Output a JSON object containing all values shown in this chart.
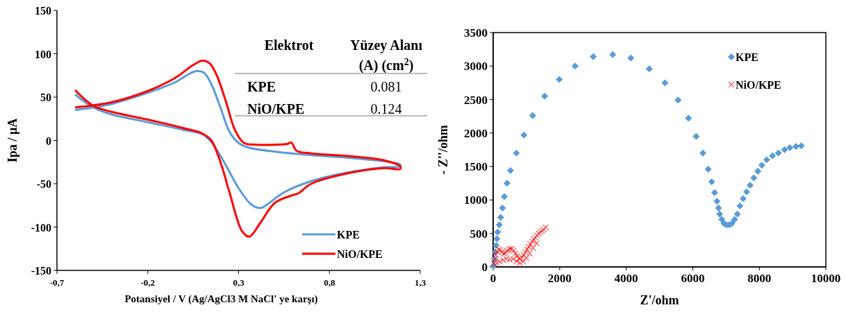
{
  "chart_data": [
    {
      "type": "line",
      "xlabel": "Potansiyel / V (Ag/AgCl3 M NaCl' ye karşı)",
      "ylabel": "Ipa  / µA",
      "xlim": [
        -0.7,
        1.3
      ],
      "xticks": [
        {
          "value": -0.7,
          "label": "-0,7"
        },
        {
          "value": -0.2,
          "label": "-0,2"
        },
        {
          "value": 0.3,
          "label": "0,3"
        },
        {
          "value": 0.8,
          "label": "0,8"
        },
        {
          "value": 1.3,
          "label": "1,3"
        }
      ],
      "ylim": [
        -150,
        150
      ],
      "yticks": [
        -150,
        -100,
        -50,
        0,
        50,
        100,
        150
      ],
      "grid": false,
      "legend": "bottom right",
      "annotations": [
        "Elektrot",
        "Yüzey Alanı",
        "(A) (cm$^{2}$)",
        "KPE",
        "0.081",
        "NiO/KPE",
        "0.124"
      ],
      "series": [
        {
          "name": "KPE",
          "color": "#5b9bd5",
          "x": [
            -0.6,
            -0.4,
            -0.2,
            -0.05,
            0.03,
            0.07,
            0.11,
            0.15,
            0.2,
            0.25,
            0.3,
            0.35,
            0.5,
            0.7,
            0.9,
            1.1,
            1.19,
            1.19,
            1.1,
            0.9,
            0.7,
            0.55,
            0.45,
            0.42,
            0.37,
            0.3,
            0.22,
            0.15,
            0.1,
            0.0,
            -0.2,
            -0.4,
            -0.5,
            -0.6
          ],
          "values": [
            35,
            42,
            55,
            67,
            77,
            80,
            78,
            65,
            38,
            10,
            -3,
            -8,
            -13,
            -17,
            -20,
            -24,
            -28,
            -30,
            -31,
            -37,
            -47,
            -60,
            -75,
            -78,
            -74,
            -55,
            -25,
            -2,
            7,
            12,
            21,
            30,
            38,
            53
          ]
        },
        {
          "name": "NiO/KPE",
          "color": "#ff0000",
          "x": [
            -0.6,
            -0.4,
            -0.2,
            -0.05,
            0.05,
            0.1,
            0.14,
            0.18,
            0.23,
            0.28,
            0.33,
            0.4,
            0.5,
            0.57,
            0.59,
            0.62,
            0.7,
            0.9,
            1.1,
            1.19,
            1.19,
            1.1,
            0.9,
            0.7,
            0.63,
            0.6,
            0.5,
            0.42,
            0.36,
            0.32,
            0.25,
            0.2,
            0.15,
            0.1,
            0.0,
            -0.2,
            -0.4,
            -0.5,
            -0.6
          ],
          "values": [
            38,
            44,
            57,
            72,
            87,
            92,
            89,
            75,
            45,
            12,
            -3,
            -5,
            -5,
            -4,
            -2.5,
            -12,
            -15,
            -18,
            -23,
            -30,
            -33,
            -32,
            -38,
            -50,
            -61,
            -63,
            -72,
            -95,
            -111,
            -105,
            -60,
            -25,
            0,
            8,
            14,
            24,
            33,
            40,
            58
          ]
        }
      ]
    },
    {
      "type": "scatter",
      "xlabel": "Z'/ohm",
      "ylabel": "- Z''/ohm",
      "xlim": [
        0,
        10000
      ],
      "xticks": [
        0,
        2000,
        4000,
        6000,
        8000,
        10000
      ],
      "ylim": [
        0,
        3500
      ],
      "yticks": [
        0,
        500,
        1000,
        1500,
        2000,
        2500,
        3000,
        3500
      ],
      "grid": false,
      "legend": "top right",
      "series": [
        {
          "name": "KPE",
          "color": "#5b9bd5",
          "marker": "diamond",
          "x": [
            16,
            40,
            64,
            88,
            112,
            136,
            184,
            225,
            281,
            337,
            417,
            521,
            698,
            922,
            1187,
            1548,
            1989,
            2462,
            3007,
            3593,
            4138,
            4692,
            5165,
            5558,
            5870,
            6103,
            6304,
            6464,
            6568,
            6656,
            6729,
            6777,
            6809,
            6873,
            6937,
            7017,
            7097,
            7178,
            7258,
            7338,
            7418,
            7515,
            7619,
            7723,
            7835,
            7956,
            8076,
            8221,
            8397,
            8573,
            8758,
            8918,
            9102,
            9262
          ],
          "values": [
            20,
            120,
            220,
            320,
            420,
            520,
            630,
            740,
            880,
            1050,
            1250,
            1440,
            1700,
            1970,
            2260,
            2550,
            2800,
            3000,
            3140,
            3170,
            3120,
            2960,
            2750,
            2490,
            2220,
            1950,
            1700,
            1460,
            1270,
            1110,
            980,
            880,
            790,
            710,
            650,
            630,
            630,
            650,
            710,
            790,
            910,
            1020,
            1120,
            1220,
            1330,
            1430,
            1520,
            1600,
            1660,
            1700,
            1750,
            1780,
            1800,
            1810
          ]
        },
        {
          "name": "NiO/KPE",
          "color": "#ff0000",
          "marker": "cross",
          "x": [
            20,
            50,
            80,
            120,
            170,
            220,
            270,
            320,
            370,
            420,
            470,
            520,
            570,
            620,
            670,
            720,
            770,
            820,
            870,
            920,
            970,
            1020,
            1070,
            1120,
            1170,
            1220,
            1270,
            1320,
            1370,
            1420,
            1470,
            1520,
            1580,
            100,
            200,
            300,
            400,
            500,
            600,
            700,
            800,
            900,
            1000,
            1100,
            1200,
            1300
          ],
          "values": [
            50,
            120,
            180,
            230,
            260,
            250,
            220,
            200,
            210,
            240,
            260,
            270,
            265,
            240,
            200,
            160,
            130,
            120,
            140,
            180,
            220,
            260,
            300,
            340,
            380,
            410,
            440,
            470,
            500,
            520,
            540,
            560,
            590,
            60,
            80,
            100,
            120,
            110,
            120,
            80,
            60,
            80,
            130,
            200,
            280,
            350
          ]
        }
      ]
    }
  ]
}
